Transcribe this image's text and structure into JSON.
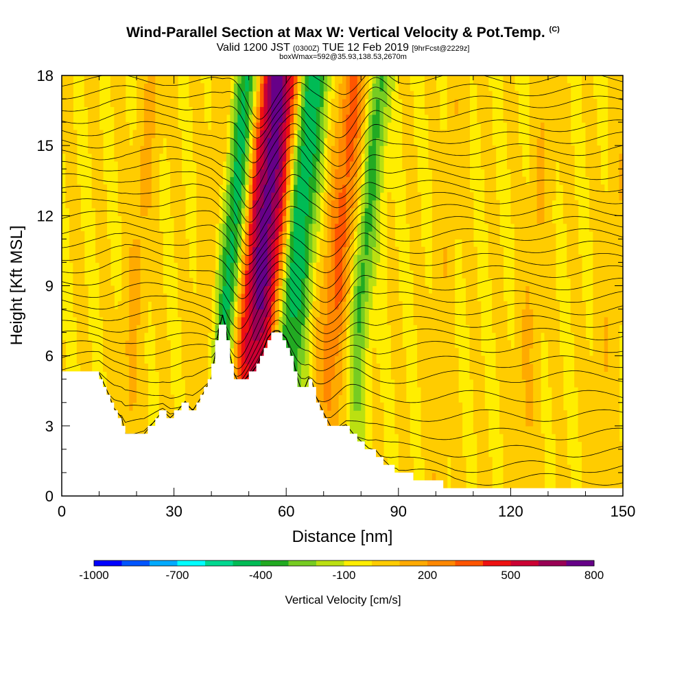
{
  "header": {
    "title": "Wind-Parallel Section at Max W: Vertical Velocity & Pot.Temp.",
    "copyright": "(C)",
    "valid_prefix": "Valid 1200 JST",
    "valid_zulu": "(0300Z)",
    "valid_date": "TUE 12 Feb 2019",
    "forecast_tag": "[9hrFcst@2229z]",
    "box_info": "boxWmax=592@35.93,138.53,2670m"
  },
  "colors": {
    "frame": "#000000",
    "terrain": "#ffffff",
    "background_fill": "#ffee00",
    "contour": "#000000"
  },
  "chart_data": {
    "type": "heatmap",
    "xlabel": "Distance [nm]",
    "ylabel": "Height [Kft MSL]",
    "xlim": [
      0,
      150
    ],
    "ylim": [
      0,
      18
    ],
    "x_ticks": [
      "0",
      "30",
      "60",
      "90",
      "120",
      "150"
    ],
    "y_ticks": [
      "0",
      "3",
      "6",
      "9",
      "12",
      "15",
      "18"
    ],
    "colorbar": {
      "label": "Vertical Velocity [cm/s]",
      "tick_labels": [
        "-1000",
        "-700",
        "-400",
        "-100",
        "200",
        "500",
        "800"
      ],
      "colors": [
        "#0000ff",
        "#0055ff",
        "#00aaff",
        "#00ffff",
        "#00d890",
        "#00bb55",
        "#22aa22",
        "#77cc22",
        "#bbe011",
        "#ffee00",
        "#ffcc00",
        "#ffaa00",
        "#ff8800",
        "#ff5500",
        "#ee1111",
        "#cc0033",
        "#990055",
        "#660088"
      ]
    },
    "terrain_kft": {
      "x": [
        0,
        10,
        12,
        14,
        16,
        17,
        22,
        24,
        27,
        29,
        31,
        33,
        35,
        37,
        40,
        41,
        42,
        43,
        44,
        45,
        46,
        47,
        48,
        50,
        52,
        54,
        55,
        56,
        57,
        58,
        60,
        62,
        63,
        64,
        65,
        66,
        67,
        68,
        70,
        72,
        74,
        76,
        78,
        80,
        82,
        84,
        86,
        88,
        90,
        92,
        100,
        104,
        105,
        110,
        120,
        130,
        140,
        150
      ],
      "y": [
        5.2,
        5.2,
        4.5,
        3.7,
        3.3,
        2.6,
        2.6,
        3.0,
        3.6,
        3.3,
        3.6,
        4.0,
        3.6,
        4.1,
        5.0,
        6.0,
        7.1,
        7.7,
        7.0,
        6.0,
        5.2,
        4.9,
        4.8,
        5.1,
        5.5,
        6.2,
        6.7,
        6.9,
        7.0,
        7.0,
        6.7,
        5.7,
        5.0,
        4.5,
        4.6,
        5.0,
        4.8,
        4.2,
        3.5,
        2.9,
        2.9,
        3.0,
        2.6,
        2.3,
        2.0,
        1.9,
        1.5,
        1.2,
        1.1,
        0.9,
        0.6,
        0.4,
        0.3,
        0.3,
        0.3,
        0.3,
        0.3,
        0.3
      ]
    },
    "w_features": [
      {
        "x": 43.0,
        "w": -450,
        "width_nm": 3.5
      },
      {
        "x": 47.5,
        "w": 350,
        "width_nm": 2.5
      },
      {
        "x": 51.5,
        "w": 700,
        "width_nm": 3.2
      },
      {
        "x": 55.5,
        "w": 350,
        "width_nm": 2.5
      },
      {
        "x": 60.0,
        "w": -450,
        "width_nm": 3.5
      },
      {
        "x": 63.5,
        "w": -150,
        "width_nm": 2.5
      },
      {
        "x": 72.0,
        "w": 330,
        "width_nm": 4.0
      },
      {
        "x": 78.5,
        "w": -350,
        "width_nm": 3.0
      },
      {
        "x": 18.0,
        "w": 120,
        "width_nm": 3.0
      },
      {
        "x": 38.0,
        "w": 100,
        "width_nm": 3.0
      },
      {
        "x": 100.0,
        "w": 80,
        "width_nm": 2.5
      },
      {
        "x": 124.0,
        "w": 100,
        "width_nm": 3.0
      },
      {
        "x": 145.0,
        "w": 80,
        "width_nm": 3.0
      }
    ],
    "theta_contour_heights_kft": [
      0.8,
      1.6,
      2.4,
      3.2,
      4.0,
      4.8,
      5.6,
      6.2,
      6.8,
      7.3,
      7.8,
      8.3,
      8.8,
      9.3,
      9.8,
      10.3,
      10.8,
      11.3,
      11.8,
      12.3,
      12.8,
      13.3,
      13.8,
      14.3,
      14.8,
      15.3,
      15.8,
      16.3,
      16.8,
      17.3,
      17.8
    ],
    "grid": false,
    "legend": "bottom"
  }
}
